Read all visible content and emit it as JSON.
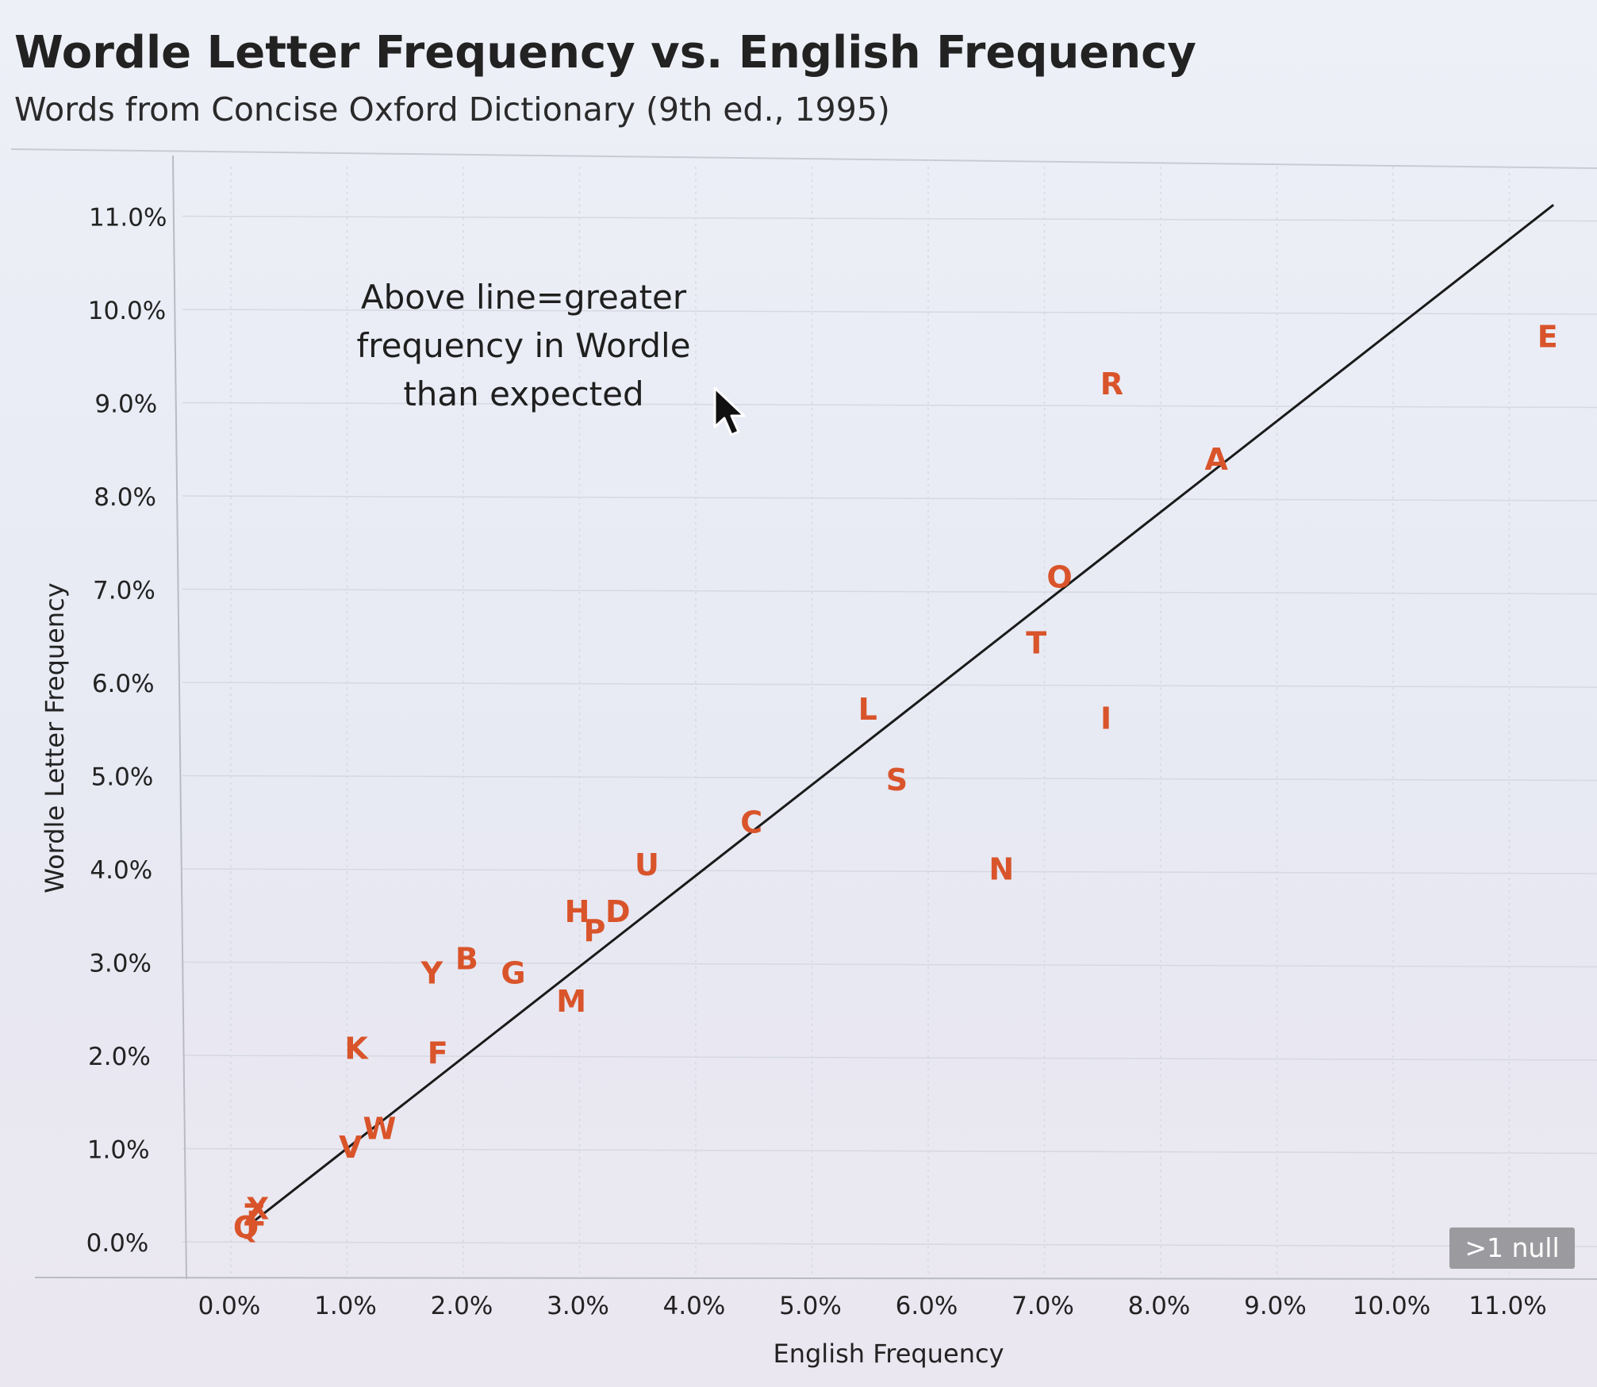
{
  "header": {
    "title": "Wordle Letter Frequency vs. English Frequency",
    "subtitle": "Words from Concise Oxford Dictionary (9th ed., 1995)"
  },
  "annotation": "Above line=greater\nfrequency in Wordle\nthan expected",
  "null_badge": ">1 null",
  "colors": {
    "accent": "#d9542a",
    "line": "#1a1a1a",
    "badge": "#9b9b9f"
  },
  "chart_data": {
    "type": "scatter",
    "xlabel": "English Frequency",
    "ylabel": "Wordle Letter Frequency",
    "xlim": [
      0,
      11.5
    ],
    "ylim": [
      0,
      11.3
    ],
    "x_ticks": [
      "0.0%",
      "1.0%",
      "2.0%",
      "3.0%",
      "4.0%",
      "5.0%",
      "6.0%",
      "7.0%",
      "8.0%",
      "9.0%",
      "10.0%",
      "11.0%"
    ],
    "y_ticks": [
      "0.0%",
      "1.0%",
      "2.0%",
      "3.0%",
      "4.0%",
      "5.0%",
      "6.0%",
      "7.0%",
      "8.0%",
      "9.0%",
      "10.0%",
      "11.0%"
    ],
    "grid": true,
    "reference_line": {
      "x": [
        0.2,
        11.4
      ],
      "y": [
        0.2,
        11.0
      ]
    },
    "points": [
      {
        "label": "E",
        "x": 11.35,
        "y": 9.6
      },
      {
        "label": "R",
        "x": 7.6,
        "y": 9.1
      },
      {
        "label": "A",
        "x": 8.5,
        "y": 8.3
      },
      {
        "label": "O",
        "x": 7.15,
        "y": 7.05
      },
      {
        "label": "T",
        "x": 6.95,
        "y": 6.35
      },
      {
        "label": "I",
        "x": 7.55,
        "y": 5.55
      },
      {
        "label": "L",
        "x": 5.5,
        "y": 5.65
      },
      {
        "label": "S",
        "x": 5.75,
        "y": 4.9
      },
      {
        "label": "N",
        "x": 6.65,
        "y": 3.95
      },
      {
        "label": "C",
        "x": 4.5,
        "y": 4.45
      },
      {
        "label": "U",
        "x": 3.6,
        "y": 4.0
      },
      {
        "label": "D",
        "x": 3.35,
        "y": 3.5
      },
      {
        "label": "H",
        "x": 3.0,
        "y": 3.5
      },
      {
        "label": "P",
        "x": 3.15,
        "y": 3.3
      },
      {
        "label": "M",
        "x": 2.95,
        "y": 2.55
      },
      {
        "label": "G",
        "x": 2.45,
        "y": 2.85
      },
      {
        "label": "B",
        "x": 2.05,
        "y": 3.0
      },
      {
        "label": "Y",
        "x": 1.75,
        "y": 2.85
      },
      {
        "label": "K",
        "x": 1.1,
        "y": 2.05
      },
      {
        "label": "F",
        "x": 1.8,
        "y": 2.0
      },
      {
        "label": "W",
        "x": 1.3,
        "y": 1.2
      },
      {
        "label": "V",
        "x": 1.05,
        "y": 1.0
      },
      {
        "label": "X",
        "x": 0.25,
        "y": 0.35
      },
      {
        "label": "Q",
        "x": 0.15,
        "y": 0.15
      },
      {
        "label": "J",
        "x": 0.2,
        "y": 0.2
      },
      {
        "label": "Z",
        "x": 0.22,
        "y": 0.28
      }
    ]
  }
}
